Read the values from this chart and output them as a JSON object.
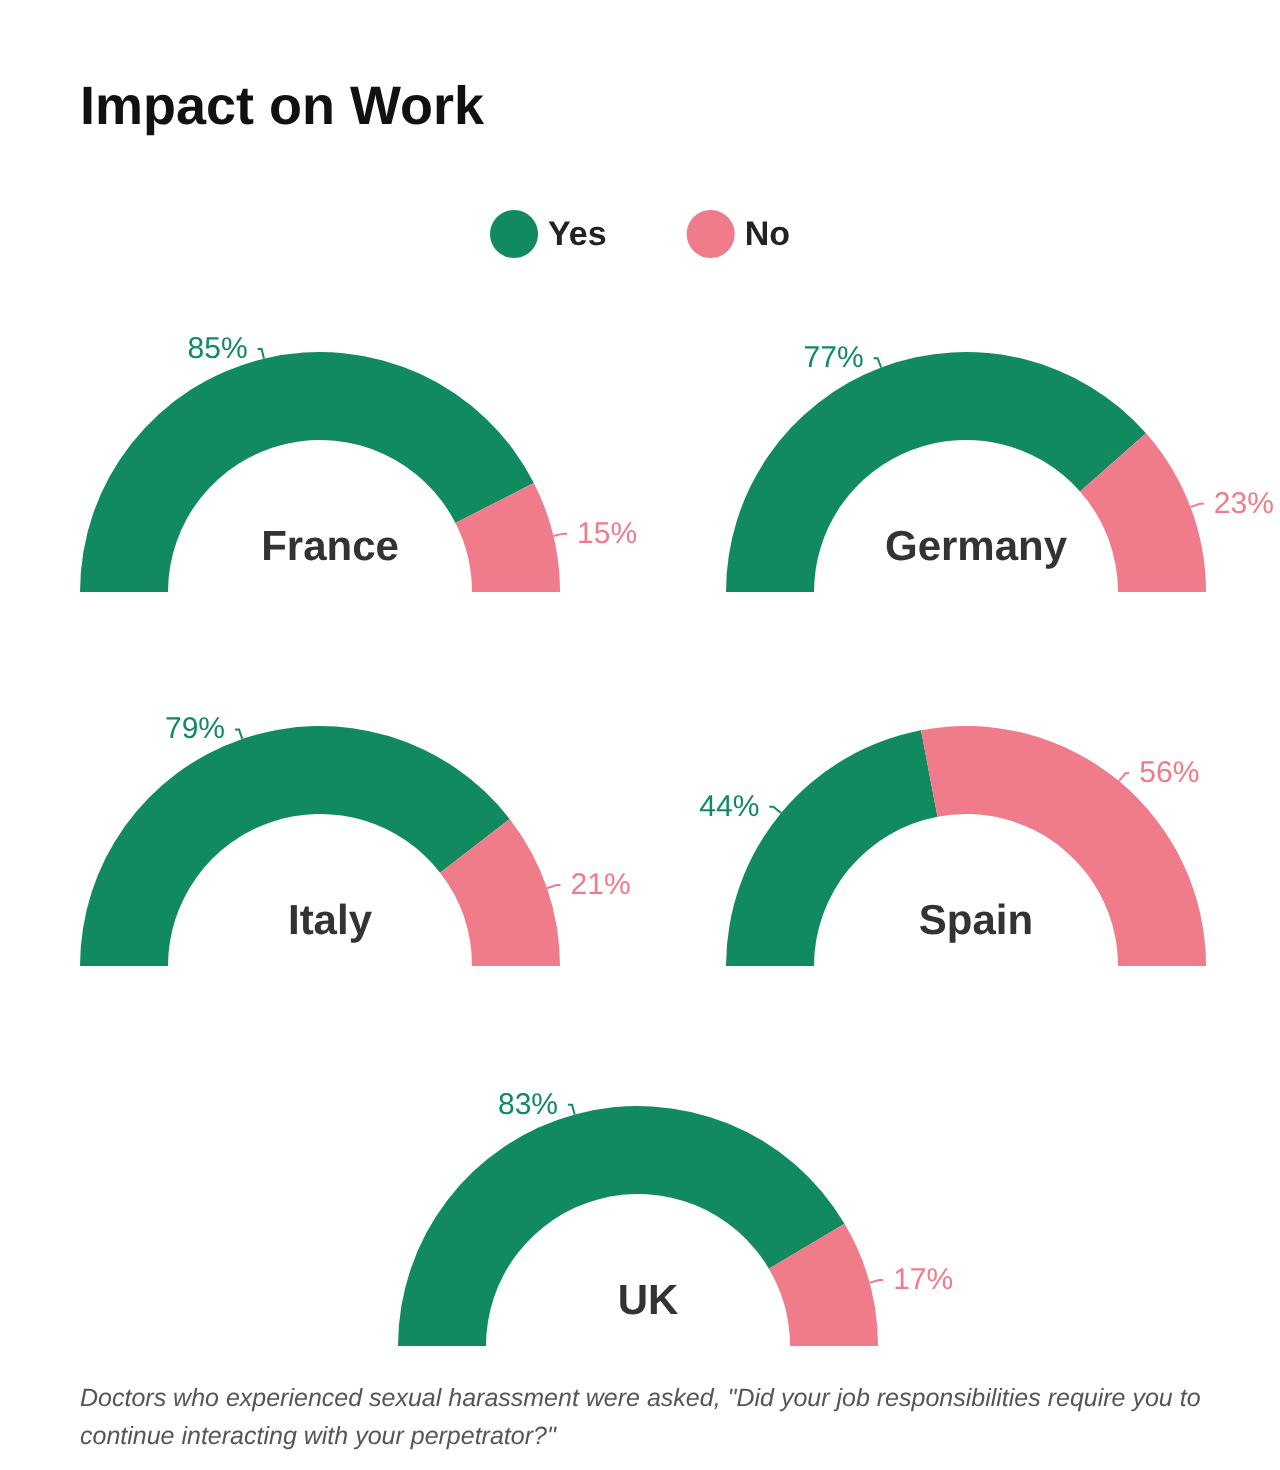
{
  "chart_data": [
    {
      "type": "other",
      "title": "Impact on Work",
      "annotations": [
        "Doctors who experienced sexual harassment were asked, \"Did your job responsibilities require you to continue interacting with your perpetrator?\""
      ]
    },
    {
      "type": "donut",
      "title": "France",
      "categories": [
        "Yes",
        "No"
      ],
      "values": [
        85,
        15
      ],
      "value_labels": [
        "85%",
        "15%"
      ],
      "colors": [
        "#128a5f",
        "#f07b8b"
      ],
      "legend": "top"
    },
    {
      "type": "donut",
      "title": "Germany",
      "categories": [
        null,
        null
      ],
      "values": [
        77,
        23
      ],
      "value_labels": [
        "77%",
        "23%"
      ],
      "colors": [
        "#128a5f",
        "#f07b8b"
      ]
    },
    {
      "type": "donut",
      "title": "Italy",
      "categories": [
        null,
        null
      ],
      "values": [
        79,
        21
      ],
      "value_labels": [
        "79%",
        "21%"
      ],
      "colors": [
        "#128a5f",
        "#f07b8b"
      ]
    },
    {
      "type": "donut",
      "title": "Spain",
      "categories": [
        null,
        null
      ],
      "values": [
        44,
        56
      ],
      "value_labels": [
        "44%",
        "56%"
      ],
      "colors": [
        "#128a5f",
        "#f07b8b"
      ]
    },
    {
      "type": "donut",
      "title": "UK",
      "categories": [
        null,
        null
      ],
      "values": [
        83,
        17
      ],
      "value_labels": [
        "83%",
        "17%"
      ],
      "colors": [
        "#128a5f",
        "#f07b8b"
      ]
    }
  ]
}
